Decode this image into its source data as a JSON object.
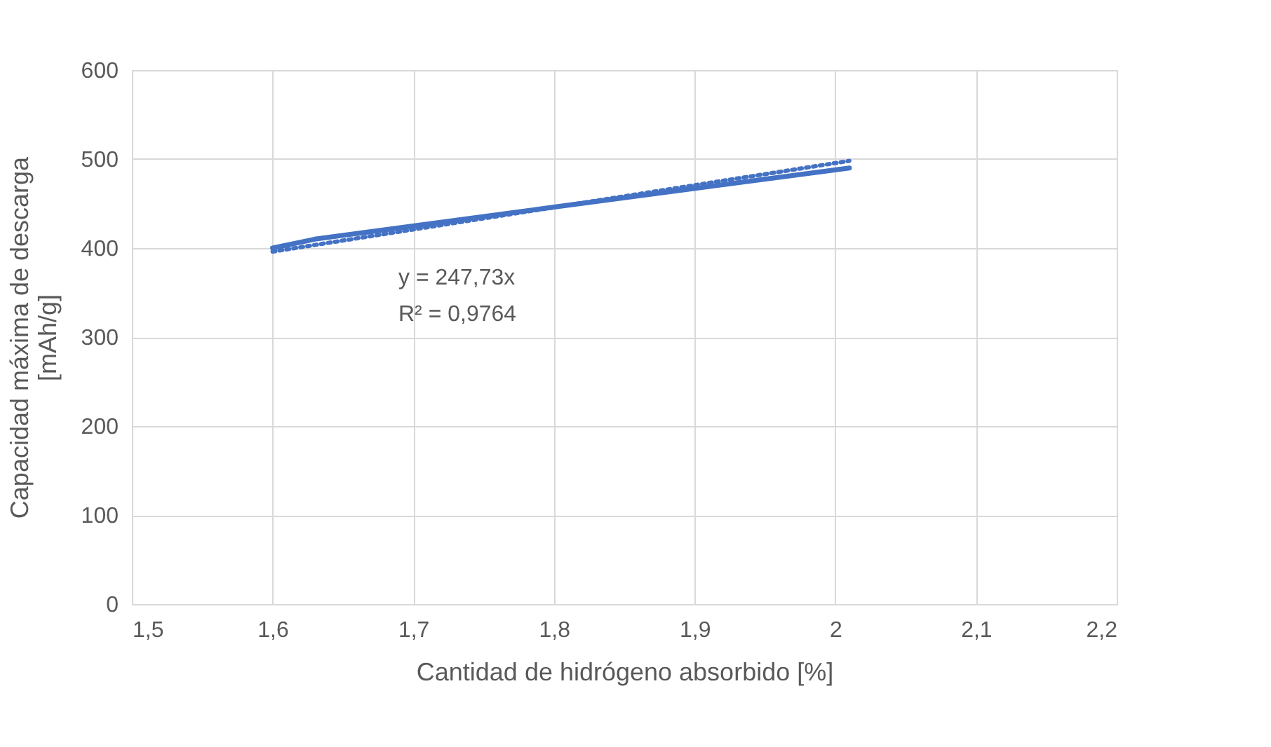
{
  "chart_data": {
    "type": "line",
    "xlabel": "Cantidad de hidrógeno absorbido [%]",
    "ylabel": "Capacidad máxima de descarga\n[mAh/g]",
    "series": [
      {
        "color": "#4472c4",
        "line_style": "solid",
        "x": [
          1.6,
          1.63,
          1.8,
          2.01
        ],
        "values": [
          400,
          410,
          446,
          490
        ]
      },
      {
        "color": "#4472c4",
        "line_style": "dotted",
        "x": [
          1.6,
          2.01
        ],
        "values": [
          396,
          498
        ]
      }
    ],
    "xlim": [
      1.5,
      2.2
    ],
    "ylim": [
      0,
      600
    ],
    "xticks": [
      {
        "value": 1.5,
        "label": "1,5"
      },
      {
        "value": 1.6,
        "label": "1,6"
      },
      {
        "value": 1.7,
        "label": "1,7"
      },
      {
        "value": 1.8,
        "label": "1,8"
      },
      {
        "value": 1.9,
        "label": "1,9"
      },
      {
        "value": 2,
        "label": "2"
      },
      {
        "value": 2.1,
        "label": "2,1"
      },
      {
        "value": 2.2,
        "label": "2,2"
      }
    ],
    "yticks": [
      0,
      100,
      200,
      300,
      400,
      500,
      600
    ],
    "annotations": [
      "y = 247,73x",
      "R² = 0,9764"
    ],
    "grid": true
  }
}
